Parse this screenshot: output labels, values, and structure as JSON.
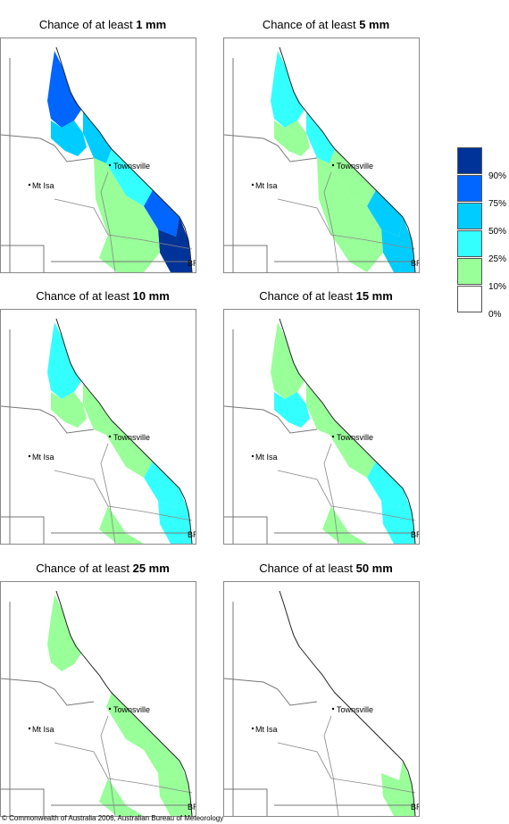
{
  "panels": [
    {
      "title_prefix": "Chance of at least ",
      "title_value": "1 mm",
      "level": 0
    },
    {
      "title_prefix": "Chance of at least ",
      "title_value": "5 mm",
      "level": 1
    },
    {
      "title_prefix": "Chance of at least ",
      "title_value": "10 mm",
      "level": 2
    },
    {
      "title_prefix": "Chance of at least ",
      "title_value": "15 mm",
      "level": 3
    },
    {
      "title_prefix": "Chance of at least ",
      "title_value": "25 mm",
      "level": 4
    },
    {
      "title_prefix": "Chance of at least ",
      "title_value": "50 mm",
      "level": 5
    }
  ],
  "places": {
    "townsville": "Townsville",
    "mt_isa": "Mt Isa",
    "brisbane": "BRIS"
  },
  "legend": {
    "labels": [
      "90%",
      "75%",
      "50%",
      "25%",
      "10%",
      "0%"
    ],
    "colors": [
      "#003399",
      "#0066ff",
      "#00ccff",
      "#33ffff",
      "#99ff99",
      "#ffffff"
    ]
  },
  "copyright": "© Commonwealth of Australia 2006, Australian Bureau of Meteorology"
}
